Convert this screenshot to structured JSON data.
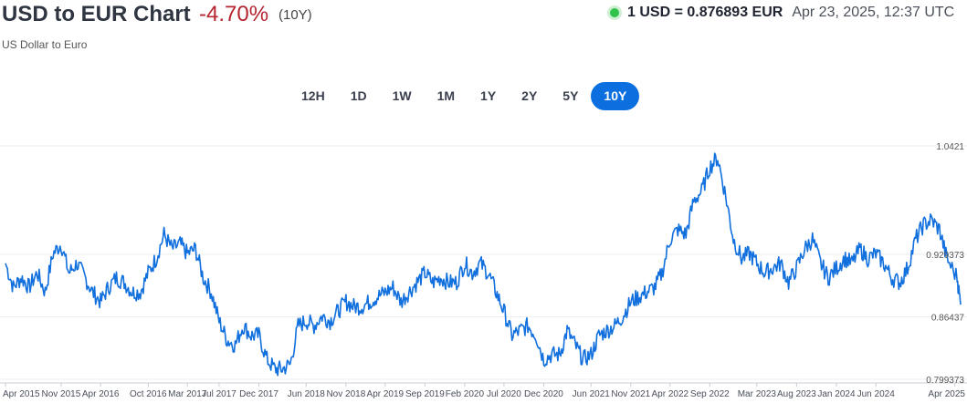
{
  "header": {
    "title": "USD to EUR Chart",
    "change": "-4.70%",
    "period": "(10Y)",
    "subtitle": "US Dollar to Euro",
    "rate": "1 USD = 0.876893 EUR",
    "timestamp": "Apr 23, 2025, 12:37 UTC"
  },
  "ranges": [
    "12H",
    "1D",
    "1W",
    "1M",
    "1Y",
    "2Y",
    "5Y",
    "10Y"
  ],
  "active_range": "10Y",
  "colors": {
    "line": "#1170dd",
    "accent": "#0b6fe0",
    "negative": "#b5242f",
    "live": "#31c24a"
  },
  "chart_data": {
    "type": "line",
    "series": [
      {
        "values": [
          [
            "2015-04",
            0.92
          ],
          [
            "2015-05",
            0.895
          ],
          [
            "2015-06",
            0.905
          ],
          [
            "2015-07",
            0.895
          ],
          [
            "2015-08",
            0.91
          ],
          [
            "2015-09",
            0.89
          ],
          [
            "2015-10",
            0.93
          ],
          [
            "2015-11",
            0.94
          ],
          [
            "2015-12",
            0.91
          ],
          [
            "2016-01",
            0.92
          ],
          [
            "2016-02",
            0.905
          ],
          [
            "2016-03",
            0.89
          ],
          [
            "2016-04",
            0.88
          ],
          [
            "2016-05",
            0.895
          ],
          [
            "2016-06",
            0.905
          ],
          [
            "2016-07",
            0.9
          ],
          [
            "2016-08",
            0.89
          ],
          [
            "2016-09",
            0.89
          ],
          [
            "2016-10",
            0.91
          ],
          [
            "2016-11",
            0.925
          ],
          [
            "2016-12",
            0.95
          ],
          [
            "2017-01",
            0.935
          ],
          [
            "2017-02",
            0.94
          ],
          [
            "2017-03",
            0.93
          ],
          [
            "2017-04",
            0.935
          ],
          [
            "2017-05",
            0.905
          ],
          [
            "2017-06",
            0.89
          ],
          [
            "2017-07",
            0.86
          ],
          [
            "2017-08",
            0.84
          ],
          [
            "2017-09",
            0.835
          ],
          [
            "2017-10",
            0.855
          ],
          [
            "2017-11",
            0.845
          ],
          [
            "2017-12",
            0.845
          ],
          [
            "2018-01",
            0.82
          ],
          [
            "2018-02",
            0.81
          ],
          [
            "2018-03",
            0.81
          ],
          [
            "2018-04",
            0.815
          ],
          [
            "2018-05",
            0.855
          ],
          [
            "2018-06",
            0.86
          ],
          [
            "2018-07",
            0.855
          ],
          [
            "2018-08",
            0.865
          ],
          [
            "2018-09",
            0.86
          ],
          [
            "2018-10",
            0.87
          ],
          [
            "2018-11",
            0.88
          ],
          [
            "2018-12",
            0.875
          ],
          [
            "2019-01",
            0.875
          ],
          [
            "2019-02",
            0.88
          ],
          [
            "2019-03",
            0.885
          ],
          [
            "2019-04",
            0.89
          ],
          [
            "2019-05",
            0.895
          ],
          [
            "2019-06",
            0.88
          ],
          [
            "2019-07",
            0.89
          ],
          [
            "2019-08",
            0.9
          ],
          [
            "2019-09",
            0.91
          ],
          [
            "2019-10",
            0.9
          ],
          [
            "2019-11",
            0.905
          ],
          [
            "2019-12",
            0.9
          ],
          [
            "2020-01",
            0.9
          ],
          [
            "2020-02",
            0.92
          ],
          [
            "2020-03",
            0.91
          ],
          [
            "2020-04",
            0.92
          ],
          [
            "2020-05",
            0.91
          ],
          [
            "2020-06",
            0.89
          ],
          [
            "2020-07",
            0.87
          ],
          [
            "2020-08",
            0.845
          ],
          [
            "2020-09",
            0.85
          ],
          [
            "2020-10",
            0.855
          ],
          [
            "2020-11",
            0.845
          ],
          [
            "2020-12",
            0.82
          ],
          [
            "2021-01",
            0.825
          ],
          [
            "2021-02",
            0.825
          ],
          [
            "2021-03",
            0.85
          ],
          [
            "2021-04",
            0.835
          ],
          [
            "2021-05",
            0.82
          ],
          [
            "2021-06",
            0.825
          ],
          [
            "2021-07",
            0.845
          ],
          [
            "2021-08",
            0.85
          ],
          [
            "2021-09",
            0.855
          ],
          [
            "2021-10",
            0.865
          ],
          [
            "2021-11",
            0.88
          ],
          [
            "2021-12",
            0.885
          ],
          [
            "2022-01",
            0.89
          ],
          [
            "2022-02",
            0.895
          ],
          [
            "2022-03",
            0.91
          ],
          [
            "2022-04",
            0.945
          ],
          [
            "2022-05",
            0.955
          ],
          [
            "2022-06",
            0.95
          ],
          [
            "2022-07",
            0.985
          ],
          [
            "2022-08",
            0.995
          ],
          [
            "2022-09",
            1.02
          ],
          [
            "2022-10",
            1.03
          ],
          [
            "2022-11",
            0.99
          ],
          [
            "2022-12",
            0.945
          ],
          [
            "2023-01",
            0.925
          ],
          [
            "2023-02",
            0.93
          ],
          [
            "2023-03",
            0.92
          ],
          [
            "2023-04",
            0.91
          ],
          [
            "2023-05",
            0.915
          ],
          [
            "2023-06",
            0.92
          ],
          [
            "2023-07",
            0.9
          ],
          [
            "2023-08",
            0.915
          ],
          [
            "2023-09",
            0.935
          ],
          [
            "2023-10",
            0.945
          ],
          [
            "2023-11",
            0.92
          ],
          [
            "2023-12",
            0.905
          ],
          [
            "2024-01",
            0.915
          ],
          [
            "2024-02",
            0.925
          ],
          [
            "2024-03",
            0.92
          ],
          [
            "2024-04",
            0.935
          ],
          [
            "2024-05",
            0.925
          ],
          [
            "2024-06",
            0.93
          ],
          [
            "2024-07",
            0.92
          ],
          [
            "2024-08",
            0.905
          ],
          [
            "2024-09",
            0.9
          ],
          [
            "2024-10",
            0.915
          ],
          [
            "2024-11",
            0.945
          ],
          [
            "2024-12",
            0.96
          ],
          [
            "2025-01",
            0.965
          ],
          [
            "2025-02",
            0.955
          ],
          [
            "2025-03",
            0.925
          ],
          [
            "2025-04-10",
            0.905
          ],
          [
            "2025-04-23",
            0.876893
          ]
        ]
      }
    ],
    "x_labels": [
      "Apr 2015",
      "Nov 2015",
      "Apr 2016",
      "Oct 2016",
      "Mar 2017",
      "Jul 2017",
      "Dec 2017",
      "Jun 2018",
      "Nov 2018",
      "Apr 2019",
      "Sep 2019",
      "Feb 2020",
      "Jul 2020",
      "Dec 2020",
      "Jun 2021",
      "Nov 2021",
      "Apr 2022",
      "Sep 2022",
      "Mar 2023",
      "Aug 2023",
      "Jan 2024",
      "Jun 2024",
      "Apr 2025"
    ],
    "x_label_dates": [
      "2015-04-01",
      "2015-11-01",
      "2016-04-01",
      "2016-10-01",
      "2017-03-01",
      "2017-07-01",
      "2017-12-01",
      "2018-06-01",
      "2018-11-01",
      "2019-04-01",
      "2019-09-01",
      "2020-02-01",
      "2020-07-01",
      "2020-12-01",
      "2021-06-01",
      "2021-11-01",
      "2022-04-01",
      "2022-09-01",
      "2023-03-01",
      "2023-08-01",
      "2024-01-01",
      "2024-06-01",
      "2025-04-01"
    ],
    "y_labels": [
      "1.0421",
      "0.929373",
      "0.86437",
      "0.799373"
    ],
    "y_ticks": [
      1.0421,
      0.929373,
      0.86437,
      0.799373
    ],
    "ylim": [
      0.799373,
      1.0421
    ],
    "grid": true
  }
}
